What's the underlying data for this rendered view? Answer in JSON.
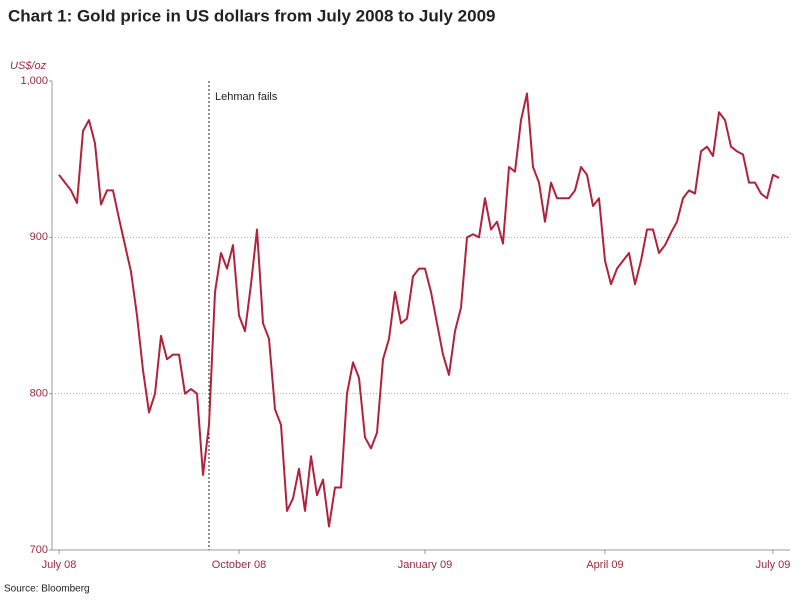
{
  "chart_data": {
    "type": "line",
    "title": "Chart 1: Gold price in US dollars from July 2008 to July 2009",
    "y_label": "US$/oz",
    "source": "Source: Bloomberg",
    "annotation": "Lehman fails",
    "color": "#b0233b",
    "grid": true,
    "categories": [
      "July 08",
      null,
      null,
      null,
      null,
      null,
      null,
      null,
      null,
      null,
      null,
      null,
      null,
      null,
      null,
      null,
      null,
      null,
      null,
      null,
      null,
      null,
      null,
      null,
      null,
      null,
      null,
      null,
      null,
      null,
      "October 08",
      null,
      null,
      null,
      null,
      null,
      null,
      null,
      null,
      null,
      null,
      null,
      null,
      null,
      null,
      null,
      null,
      null,
      null,
      null,
      null,
      null,
      null,
      null,
      null,
      null,
      null,
      null,
      null,
      null,
      null,
      "January 09",
      null,
      null,
      null,
      null,
      null,
      null,
      null,
      null,
      null,
      null,
      null,
      null,
      null,
      null,
      null,
      null,
      null,
      null,
      null,
      null,
      null,
      null,
      null,
      null,
      null,
      null,
      null,
      null,
      null,
      "April 09",
      null,
      null,
      null,
      null,
      null,
      null,
      null,
      null,
      null,
      null,
      null,
      null,
      null,
      null,
      null,
      null,
      null,
      null,
      null,
      null,
      null,
      null,
      null,
      null,
      null,
      null,
      null,
      "July 09",
      null
    ],
    "values": [
      940,
      935,
      930,
      922,
      968,
      975,
      960,
      921,
      930,
      930,
      912,
      895,
      878,
      850,
      815,
      788,
      800,
      837,
      822,
      825,
      825,
      800,
      803,
      800,
      748,
      780,
      865,
      890,
      880,
      895,
      850,
      840,
      870,
      905,
      845,
      835,
      790,
      780,
      725,
      733,
      752,
      725,
      760,
      735,
      745,
      715,
      740,
      740,
      800,
      820,
      810,
      772,
      765,
      775,
      822,
      835,
      865,
      845,
      848,
      875,
      880,
      880,
      865,
      845,
      825,
      812,
      840,
      855,
      900,
      902,
      900,
      925,
      905,
      910,
      896,
      945,
      942,
      975,
      992,
      945,
      935,
      910,
      935,
      925,
      925,
      925,
      930,
      945,
      940,
      920,
      925,
      885,
      870,
      880,
      885,
      890,
      870,
      885,
      905,
      905,
      890,
      895,
      903,
      910,
      925,
      930,
      928,
      955,
      958,
      952,
      980,
      975,
      958,
      955,
      953,
      935,
      935,
      928,
      925,
      940,
      938
    ],
    "ylim": [
      700,
      1000
    ],
    "yticks": [
      700,
      800,
      900,
      {
        "value": 1000,
        "label": "1,000"
      }
    ]
  }
}
